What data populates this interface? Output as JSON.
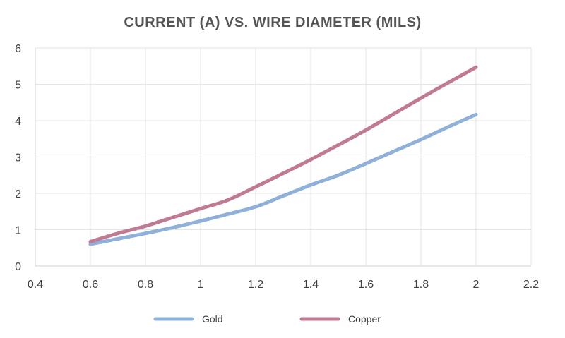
{
  "chart_data": {
    "type": "line",
    "title": "CURRENT (A) VS. WIRE DIAMETER (MILS)",
    "xlabel": "",
    "ylabel": "",
    "xlim": [
      0.4,
      2.2
    ],
    "ylim": [
      0,
      6
    ],
    "x_ticks": [
      0.4,
      0.6,
      0.8,
      1,
      1.2,
      1.4,
      1.6,
      1.8,
      2,
      2.2
    ],
    "x_tick_labels": [
      "0.4",
      "0.6",
      "0.8",
      "1",
      "1.2",
      "1.4",
      "1.6",
      "1.8",
      "2",
      "2.2"
    ],
    "y_ticks": [
      0,
      1,
      2,
      3,
      4,
      5,
      6
    ],
    "y_tick_labels": [
      "0",
      "1",
      "2",
      "3",
      "4",
      "5",
      "6"
    ],
    "grid": true,
    "legend_position": "bottom",
    "series": [
      {
        "name": "Gold",
        "color": "#8fb0d9",
        "x": [
          0.6,
          0.7,
          0.8,
          0.9,
          1.0,
          1.1,
          1.2,
          1.3,
          1.4,
          1.5,
          1.6,
          1.7,
          1.8,
          1.9,
          2.0
        ],
        "y": [
          0.6,
          0.75,
          0.9,
          1.06,
          1.24,
          1.43,
          1.63,
          1.93,
          2.23,
          2.5,
          2.82,
          3.15,
          3.48,
          3.83,
          4.17
        ]
      },
      {
        "name": "Copper",
        "color": "#c07a93",
        "x": [
          0.6,
          0.7,
          0.8,
          0.9,
          1.0,
          1.1,
          1.2,
          1.3,
          1.4,
          1.5,
          1.6,
          1.7,
          1.8,
          1.9,
          2.0
        ],
        "y": [
          0.67,
          0.9,
          1.1,
          1.34,
          1.58,
          1.82,
          2.18,
          2.55,
          2.93,
          3.33,
          3.74,
          4.18,
          4.62,
          5.05,
          5.47
        ]
      }
    ]
  }
}
